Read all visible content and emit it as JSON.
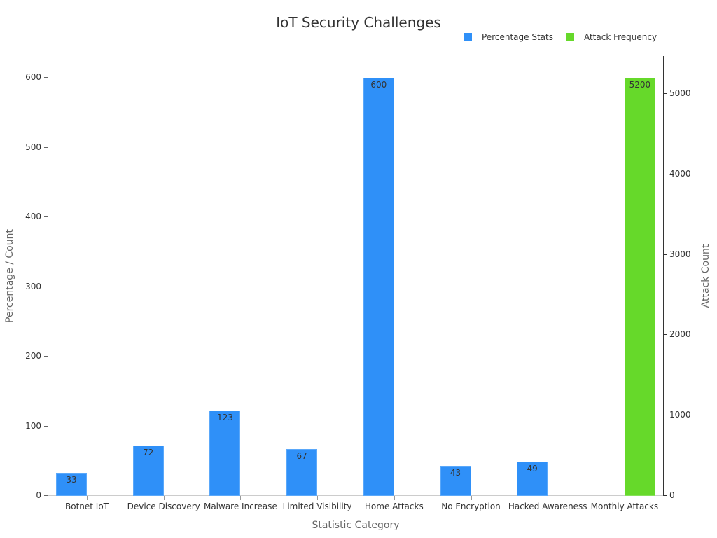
{
  "chart_data": {
    "type": "bar",
    "title": "IoT Security Challenges",
    "xlabel": "Statistic Category",
    "ylabel": "Percentage / Count",
    "ylabel_right": "Attack Count",
    "categories": [
      "Botnet IoT",
      "Device Discovery",
      "Malware Increase",
      "Limited Visibility",
      "Home Attacks",
      "No Encryption",
      "Hacked Awareness",
      "Monthly Attacks"
    ],
    "series": [
      {
        "name": "Percentage Stats",
        "color": "#2f90f8",
        "axis": "left",
        "values": [
          33,
          72,
          123,
          67,
          600,
          43,
          49,
          null
        ]
      },
      {
        "name": "Attack Frequency",
        "color": "#66d92a",
        "axis": "right",
        "values": [
          null,
          null,
          null,
          null,
          null,
          null,
          null,
          5200
        ]
      }
    ],
    "ylim": [
      0,
      630
    ],
    "ylim_right": [
      0,
      5470
    ],
    "yticks": [
      0,
      100,
      200,
      300,
      400,
      500,
      600
    ],
    "yticks_right": [
      0,
      1000,
      2000,
      3000,
      4000,
      5000
    ],
    "legend_position": "top-right",
    "grid": false
  },
  "legend": [
    {
      "label": "Percentage Stats",
      "color": "#2f90f8"
    },
    {
      "label": "Attack Frequency",
      "color": "#66d92a"
    }
  ]
}
